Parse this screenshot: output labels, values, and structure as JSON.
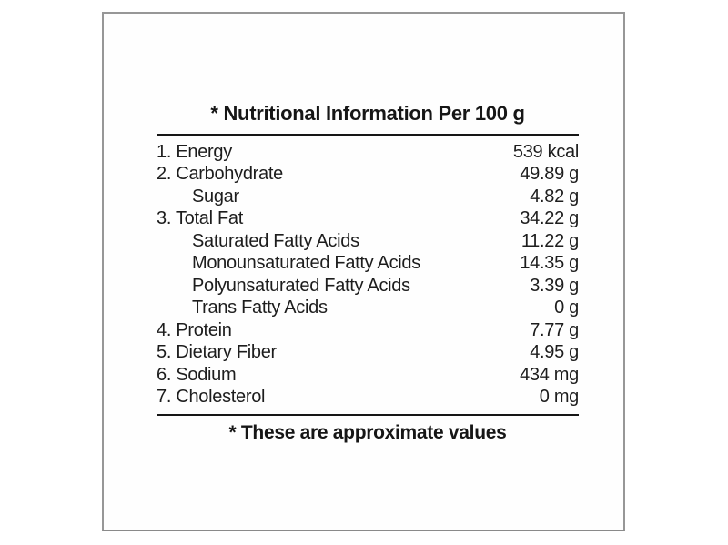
{
  "panel": {
    "title": "* Nutritional Information Per 100 g",
    "footer": "* These are approximate values",
    "rows": [
      {
        "label": "1. Energy",
        "value": "539 kcal",
        "indent": false
      },
      {
        "label": "2. Carbohydrate",
        "value": "49.89 g",
        "indent": false
      },
      {
        "label": "Sugar",
        "value": "4.82 g",
        "indent": true
      },
      {
        "label": "3. Total Fat",
        "value": "34.22 g",
        "indent": false
      },
      {
        "label": "Saturated Fatty Acids",
        "value": "11.22 g",
        "indent": true
      },
      {
        "label": "Monounsaturated Fatty Acids",
        "value": "14.35 g",
        "indent": true
      },
      {
        "label": "Polyunsaturated Fatty Acids",
        "value": "3.39 g",
        "indent": true
      },
      {
        "label": "Trans Fatty Acids",
        "value": "0 g",
        "indent": true
      },
      {
        "label": "4. Protein",
        "value": "7.77 g",
        "indent": false
      },
      {
        "label": "5. Dietary Fiber",
        "value": "4.95 g",
        "indent": false
      },
      {
        "label": "6. Sodium",
        "value": "434 mg",
        "indent": false
      },
      {
        "label": "7. Cholesterol",
        "value": "0 mg",
        "indent": false
      }
    ],
    "colors": {
      "background": "#ffffff",
      "frame_border": "#979797",
      "rule": "#161616",
      "text": "#1d1d1d"
    }
  }
}
